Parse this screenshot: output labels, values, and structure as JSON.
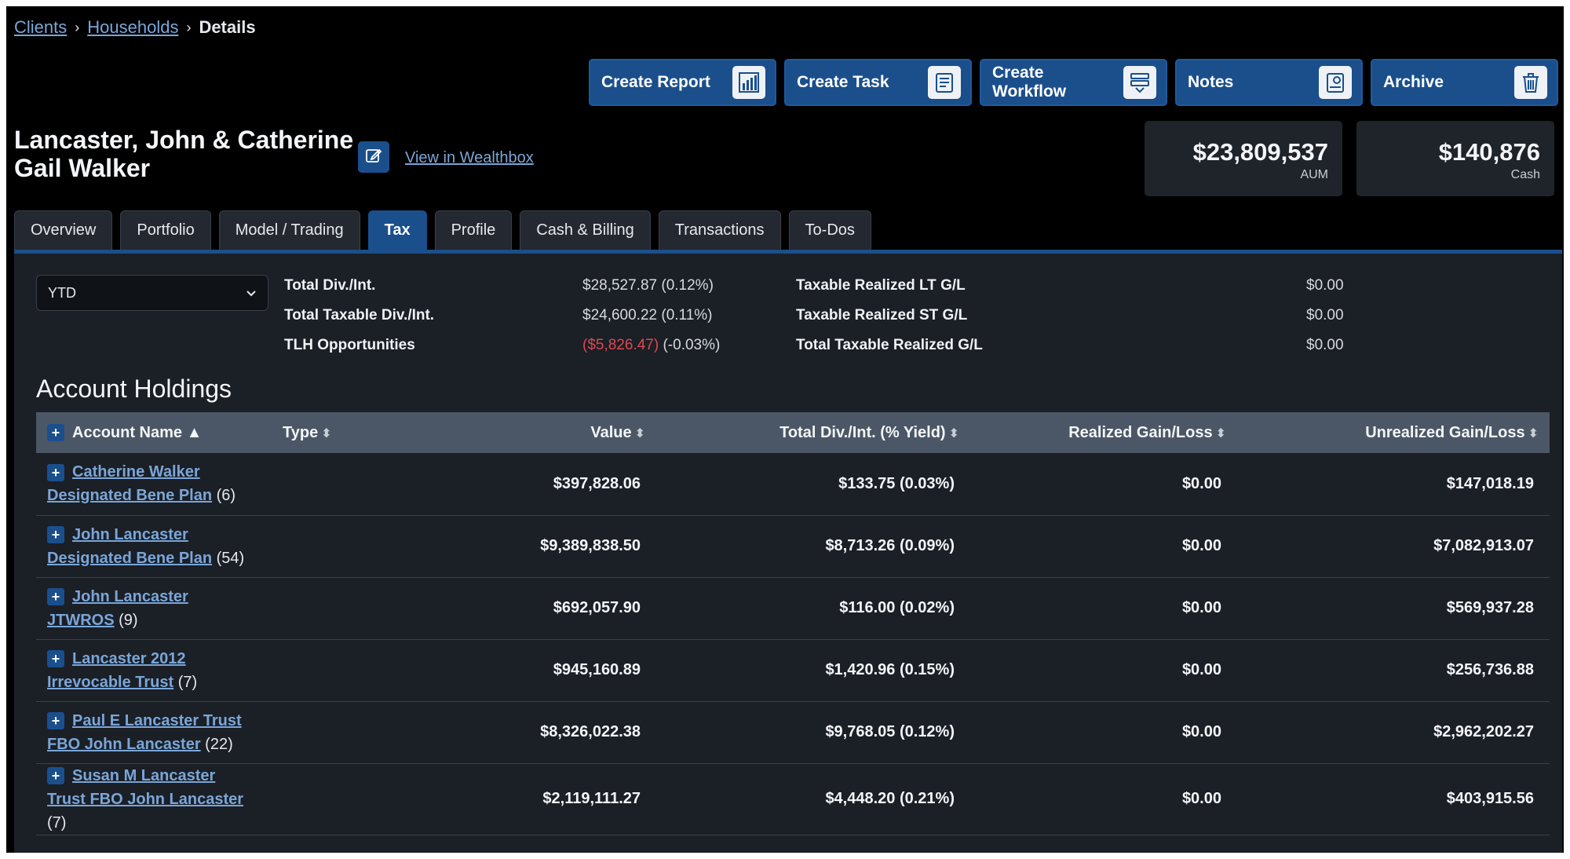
{
  "breadcrumb": {
    "clients": "Clients",
    "households": "Households",
    "current": "Details",
    "sep": "›"
  },
  "actions": [
    {
      "label": "Create Report",
      "icon": "bar-chart-icon"
    },
    {
      "label": "Create Task",
      "icon": "task-list-icon"
    },
    {
      "label": "Create Workflow",
      "icon": "workflow-icon"
    },
    {
      "label": "Notes",
      "icon": "notes-icon"
    },
    {
      "label": "Archive",
      "icon": "trash-icon"
    }
  ],
  "household": {
    "name": "Lancaster, John & Catherine Gail Walker",
    "wealthbox_link": "View in Wealthbox"
  },
  "metrics": {
    "aum_value": "$23,809,537",
    "aum_label": "AUM",
    "cash_value": "$140,876",
    "cash_label": "Cash"
  },
  "tabs": [
    "Overview",
    "Portfolio",
    "Model / Trading",
    "Tax",
    "Profile",
    "Cash & Billing",
    "Transactions",
    "To-Dos"
  ],
  "active_tab": "Tax",
  "period": {
    "selected": "YTD"
  },
  "summary": {
    "total_div_label": "Total Div./Int.",
    "total_div_value": "$28,527.87 (0.12%)",
    "taxable_div_label": "Total Taxable Div./Int.",
    "taxable_div_value": "$24,600.22 (0.11%)",
    "tlh_label": "TLH Opportunities",
    "tlh_value_neg": "($5,826.47)",
    "tlh_value_pct": "(-0.03%)",
    "lt_label": "Taxable Realized LT G/L",
    "lt_value": "$0.00",
    "st_label": "Taxable Realized ST G/L",
    "st_value": "$0.00",
    "total_realized_label": "Total Taxable Realized G/L",
    "total_realized_value": "$0.00"
  },
  "holdings": {
    "title": "Account Holdings",
    "columns": {
      "name": "Account Name",
      "name_sort": "▲",
      "type": "Type",
      "value": "Value",
      "div": "Total Div./Int. (% Yield)",
      "realized": "Realized Gain/Loss",
      "unrealized": "Unrealized Gain/Loss",
      "sort_icon": "⬍"
    },
    "rows": [
      {
        "name": "Catherine Walker Designated Bene Plan",
        "count": "(6)",
        "type": "",
        "value": "$397,828.06",
        "div": "$133.75 (0.03%)",
        "realized": "$0.00",
        "unrealized": "$147,018.19"
      },
      {
        "name": "John Lancaster Designated Bene Plan",
        "count": "(54)",
        "type": "",
        "value": "$9,389,838.50",
        "div": "$8,713.26 (0.09%)",
        "realized": "$0.00",
        "unrealized": "$7,082,913.07"
      },
      {
        "name": "John Lancaster JTWROS",
        "count": "(9)",
        "type": "",
        "value": "$692,057.90",
        "div": "$116.00 (0.02%)",
        "realized": "$0.00",
        "unrealized": "$569,937.28"
      },
      {
        "name": "Lancaster 2012 Irrevocable Trust",
        "count": "(7)",
        "type": "",
        "value": "$945,160.89",
        "div": "$1,420.96 (0.15%)",
        "realized": "$0.00",
        "unrealized": "$256,736.88"
      },
      {
        "name": "Paul E Lancaster Trust FBO John Lancaster",
        "count": "(22)",
        "type": "",
        "value": "$8,326,022.38",
        "div": "$9,768.05 (0.12%)",
        "realized": "$0.00",
        "unrealized": "$2,962,202.27"
      },
      {
        "name": "Susan M Lancaster Trust FBO John Lancaster",
        "count": "(7)",
        "type": "",
        "value": "$2,119,111.27",
        "div": "$4,448.20 (0.21%)",
        "realized": "$0.00",
        "unrealized": "$403,915.56"
      }
    ]
  }
}
